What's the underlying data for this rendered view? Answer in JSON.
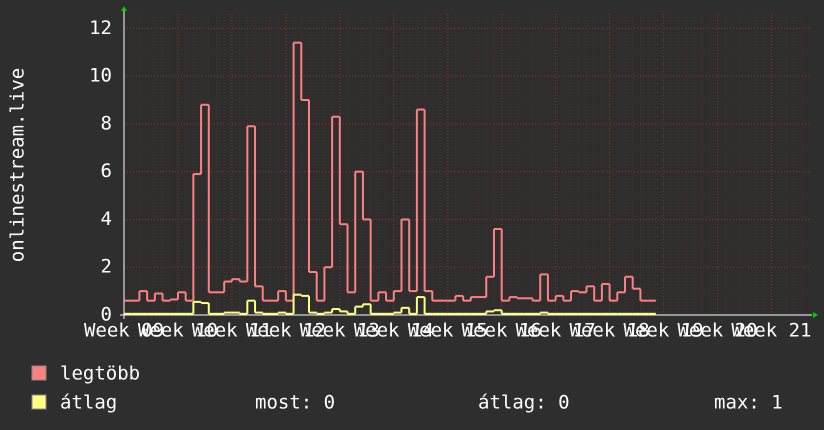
{
  "chart_data": {
    "type": "step",
    "ylabel": "onlinestream.live",
    "categories": [
      "Week 09",
      null,
      null,
      null,
      null,
      null,
      null,
      "Week 10",
      null,
      null,
      null,
      null,
      null,
      null,
      "Week 11",
      null,
      null,
      null,
      null,
      null,
      null,
      "Week 12",
      null,
      null,
      null,
      null,
      null,
      null,
      "Week 13",
      null,
      null,
      null,
      null,
      null,
      null,
      "Week 14",
      null,
      null,
      null,
      null,
      null,
      null,
      "Week 15",
      null,
      null,
      null,
      null,
      null,
      null,
      "Week 16",
      null,
      null,
      null,
      null,
      null,
      null,
      "Week 17",
      null,
      null,
      null,
      null,
      null,
      null,
      "Week 18",
      null,
      null,
      null,
      null,
      null,
      null,
      "Week 19",
      null,
      null,
      null,
      null,
      null,
      null,
      "Week 20",
      null,
      null,
      null,
      null,
      null,
      null,
      "Week 21",
      null,
      null,
      null,
      null
    ],
    "series": [
      {
        "name": "legtöbb",
        "color": "#ff8080",
        "values": [
          0.6,
          0.6,
          1.0,
          0.6,
          0.9,
          0.6,
          0.65,
          0.95,
          0.6,
          5.9,
          8.8,
          0.95,
          0.95,
          1.4,
          1.5,
          1.4,
          7.9,
          1.2,
          0.6,
          0.6,
          1.0,
          0.6,
          11.4,
          9.0,
          1.8,
          0.6,
          2.0,
          8.3,
          3.8,
          0.95,
          6.0,
          4.0,
          0.6,
          0.95,
          0.6,
          1.0,
          4.0,
          1.0,
          8.6,
          1.0,
          0.6,
          0.6,
          0.6,
          0.8,
          0.6,
          0.75,
          0.75,
          1.6,
          3.6,
          0.6,
          0.75,
          0.7,
          0.7,
          0.6,
          1.7,
          0.6,
          0.8,
          0.6,
          1.0,
          0.95,
          1.2,
          0.6,
          1.3,
          0.6,
          0.95,
          1.6,
          1.1,
          0.6,
          0.6,
          null,
          null,
          null,
          null,
          null,
          null,
          null,
          null,
          null,
          null,
          null,
          null,
          null,
          null,
          null,
          null,
          null,
          null,
          null,
          null
        ]
      },
      {
        "name": "átlag",
        "color": "#ffff80",
        "values": [
          0.05,
          0.05,
          0.05,
          0.05,
          0.05,
          0.05,
          0.05,
          0.05,
          0.05,
          0.55,
          0.5,
          0.05,
          0.05,
          0.1,
          0.1,
          0.05,
          0.6,
          0.1,
          0.05,
          0.05,
          0.1,
          0.05,
          0.85,
          0.8,
          0.1,
          0.05,
          0.1,
          0.25,
          0.15,
          0.05,
          0.35,
          0.45,
          0.05,
          0.05,
          0.05,
          0.1,
          0.3,
          0.05,
          0.75,
          0.05,
          0.05,
          0.05,
          0.05,
          0.05,
          0.05,
          0.05,
          0.05,
          0.15,
          0.2,
          0.05,
          0.05,
          0.05,
          0.05,
          0.05,
          0.1,
          0.05,
          0.05,
          0.05,
          0.05,
          0.05,
          0.05,
          0.05,
          0.05,
          0.05,
          0.05,
          0.05,
          0.05,
          0.05,
          0.05,
          null,
          null,
          null,
          null,
          null,
          null,
          null,
          null,
          null,
          null,
          null,
          null,
          null,
          null,
          null,
          null,
          null,
          null,
          null,
          null
        ]
      }
    ],
    "ylim": [
      0,
      12.6
    ],
    "yticks": [
      0,
      2,
      4,
      6,
      8,
      10,
      12
    ],
    "grid": true,
    "stats": [
      "most: 0",
      "átlag: 0",
      "max: 1"
    ]
  }
}
